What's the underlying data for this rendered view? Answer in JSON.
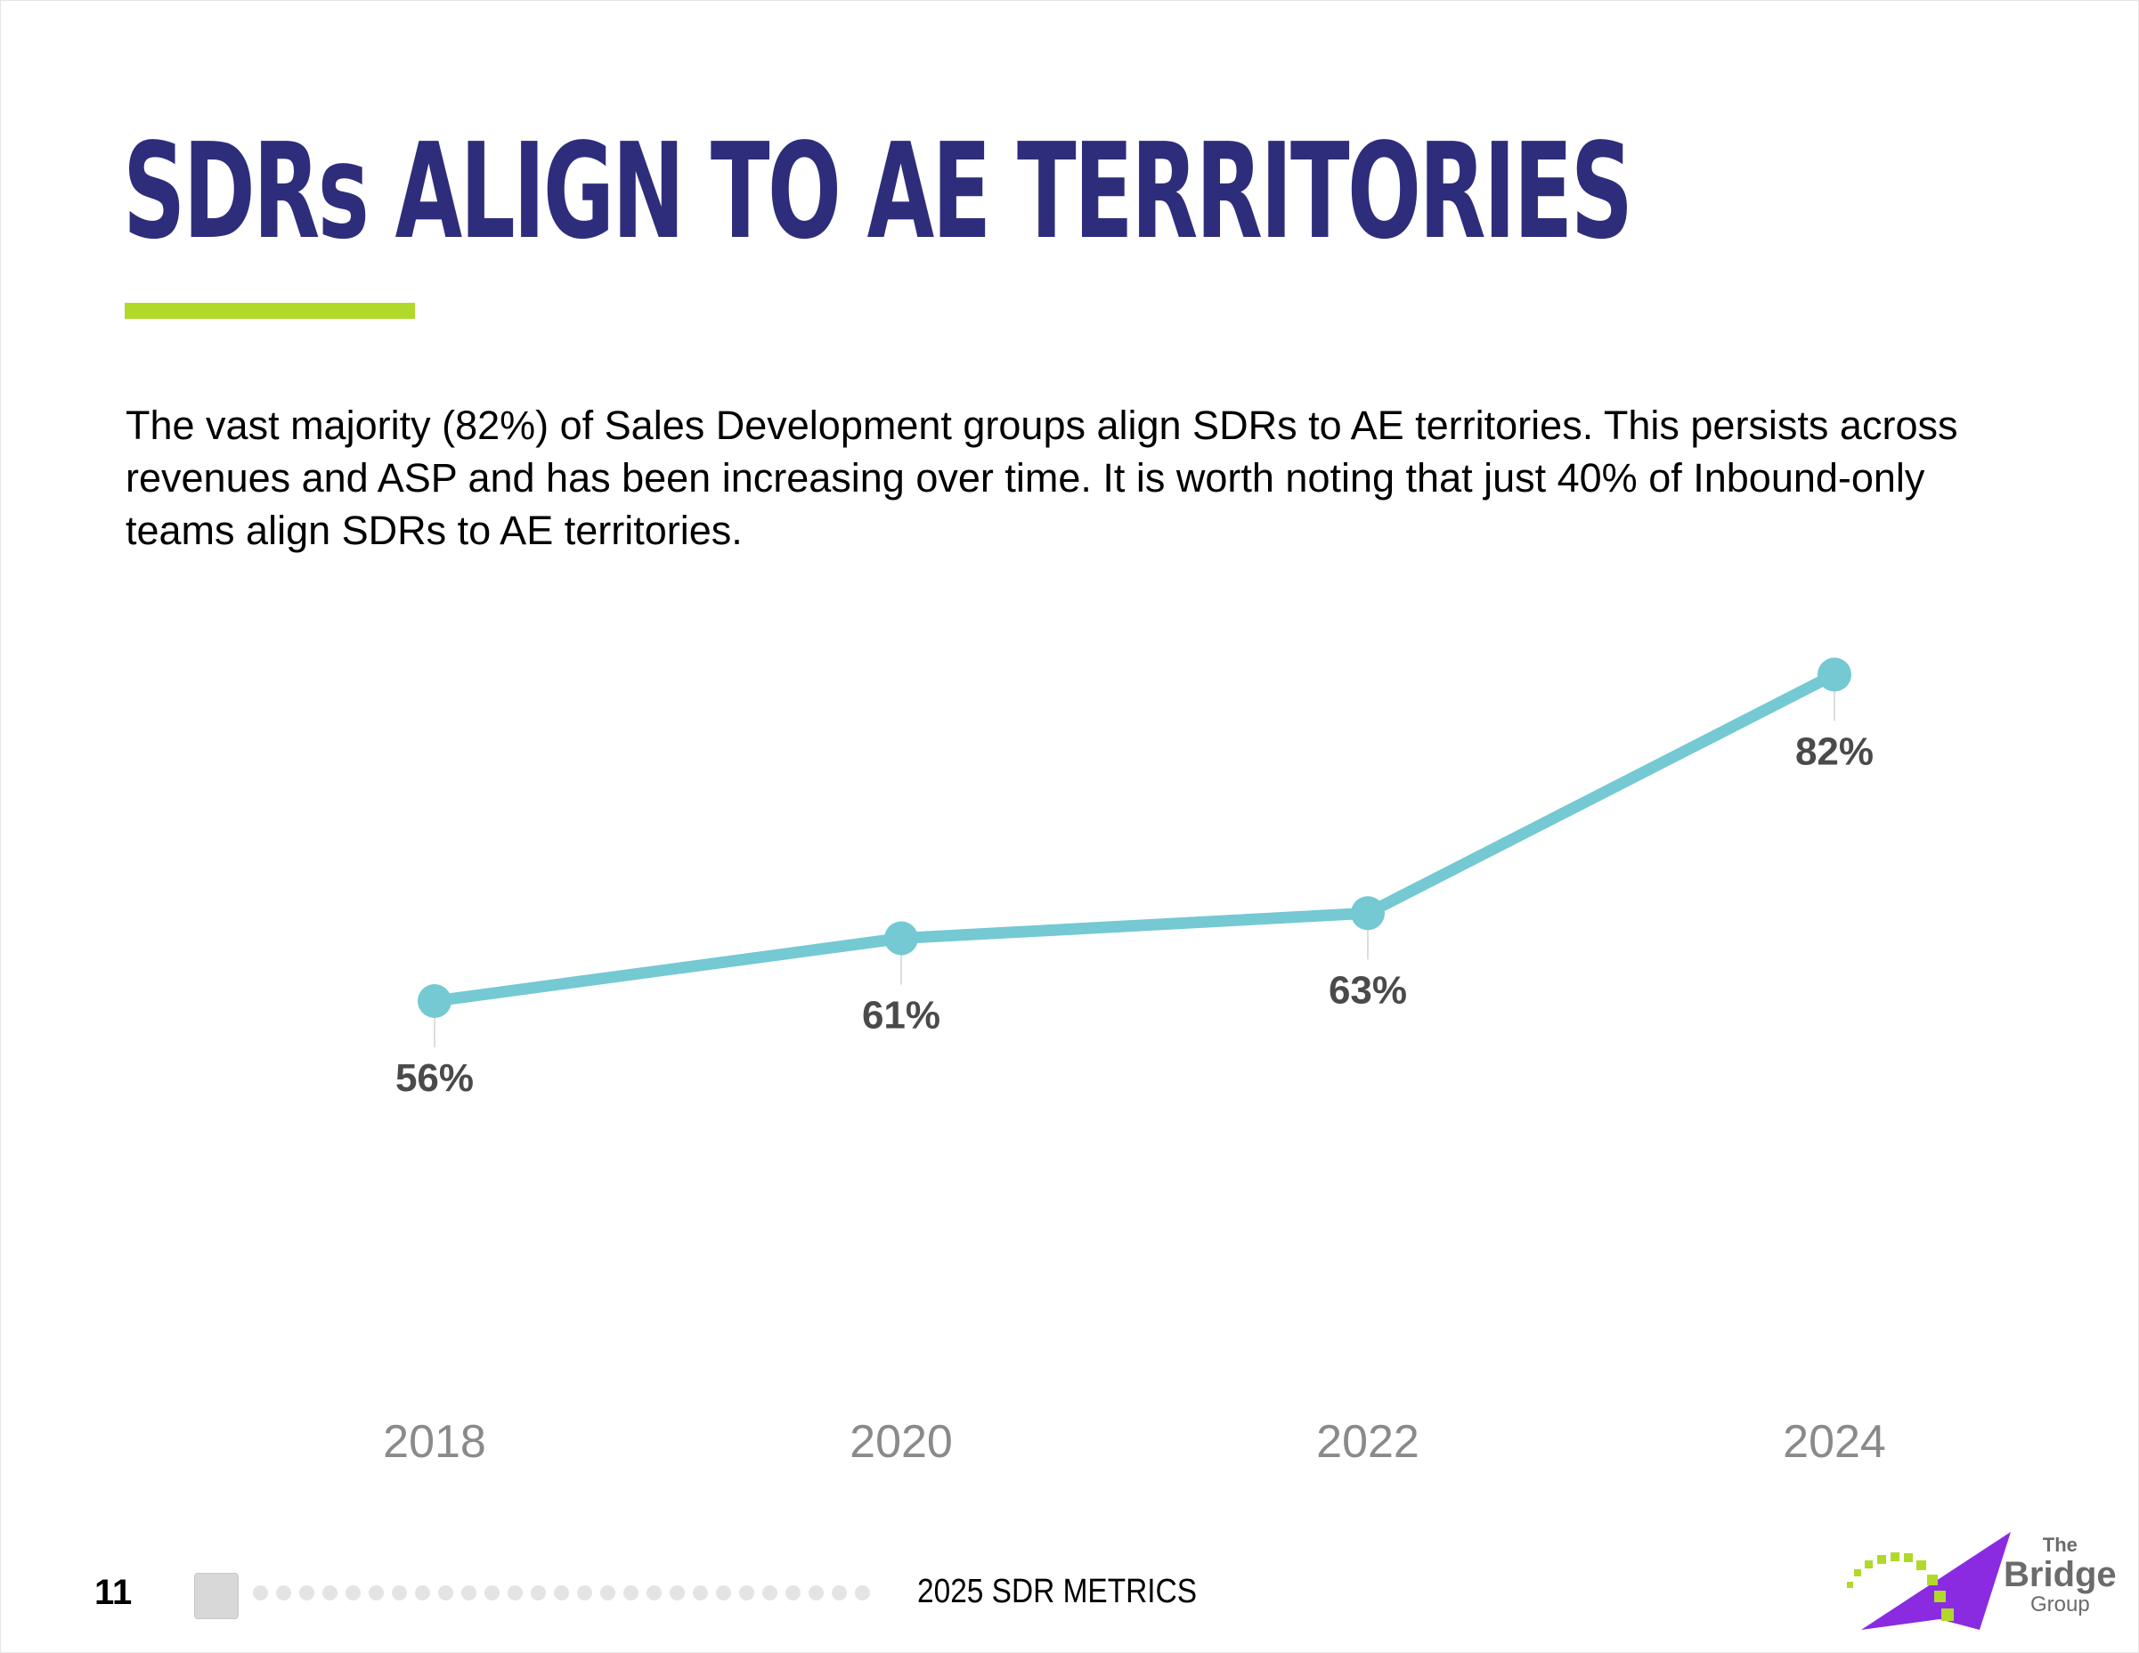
{
  "slide": {
    "title": "SDRs ALIGN TO AE TERRITORIES",
    "body": "The vast majority (82%) of Sales Development groups align SDRs to AE territories. This persists across revenues and ASP and has been increasing over time. It is worth noting that just 40% of Inbound-only teams align SDRs to AE territories.",
    "accent_color": "#b1d92a",
    "title_color": "#2e2d7c"
  },
  "chart_data": {
    "type": "line",
    "title": "",
    "xlabel": "",
    "ylabel": "",
    "categories": [
      "2018",
      "2020",
      "2022",
      "2024"
    ],
    "series": [
      {
        "name": "SDRs aligned to AE territories",
        "values": [
          56,
          61,
          63,
          82
        ]
      }
    ],
    "data_labels": [
      "56%",
      "61%",
      "63%",
      "82%"
    ],
    "line_color": "#74c9d3",
    "grid": false,
    "legend": "none"
  },
  "footer": {
    "page_number": "11",
    "report_name": "2025 SDR METRICS",
    "logo": {
      "line1": "The",
      "line2": "Bridge",
      "line3": "Group"
    }
  }
}
